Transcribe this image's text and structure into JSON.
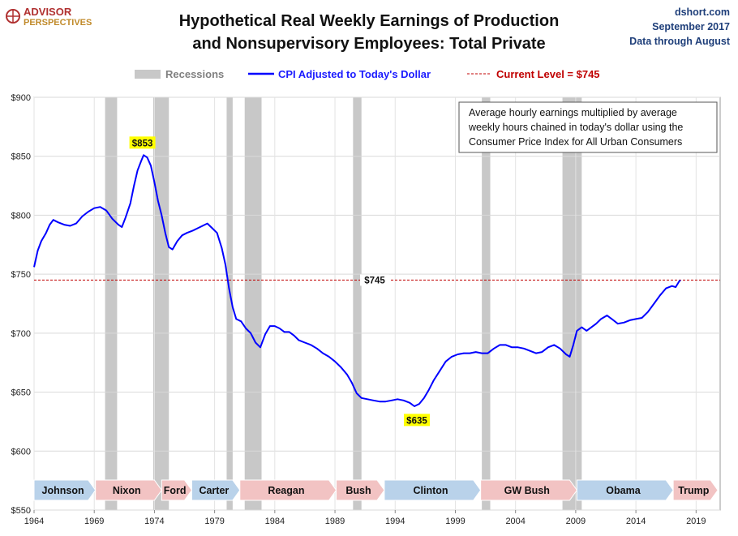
{
  "chart_data": {
    "type": "line",
    "title_line1": "Hypothetical Real Weekly Earnings of Production",
    "title_line2": "and Nonsupervisory Employees: Total Private",
    "source": {
      "site": "dshort.com",
      "date": "September 2017",
      "through": "Data through August"
    },
    "logo": {
      "line1": "ADVISOR",
      "line2": "PERSPECTIVES"
    },
    "legend": {
      "recessions": "Recessions",
      "series": "CPI Adjusted to Today's Dollar",
      "current": "Current Level = $745"
    },
    "colors": {
      "series": "#0000ff",
      "current_line": "#c00000",
      "recession": "#c8c8c8",
      "pres_red": "#f2c3c3",
      "pres_blue": "#b9d2ea",
      "annot_bg": "#ffff00"
    },
    "note": [
      "Average hourly earnings multiplied by average",
      "weekly hours chained in today's dollar using the",
      "Consumer Price Index for All Urban Consumers"
    ],
    "ylim": [
      550,
      900
    ],
    "yticks": [
      550,
      600,
      650,
      700,
      750,
      800,
      850,
      900
    ],
    "ytick_labels": [
      "$550",
      "$600",
      "$650",
      "$700",
      "$750",
      "$800",
      "$850",
      "$900"
    ],
    "xlim": [
      1964,
      2021
    ],
    "xticks": [
      1964,
      1969,
      1974,
      1979,
      1984,
      1989,
      1994,
      1999,
      2004,
      2009,
      2014,
      2019
    ],
    "current_level": 745,
    "current_label": "$745",
    "annotations": [
      {
        "label": "$853",
        "x": 1973.0,
        "y": 853
      },
      {
        "label": "$635",
        "x": 1995.8,
        "y": 635
      }
    ],
    "recessions": [
      [
        1969.9,
        1970.9
      ],
      [
        1973.9,
        1975.2
      ],
      [
        1980.0,
        1980.5
      ],
      [
        1981.5,
        1982.9
      ],
      [
        1990.5,
        1991.2
      ],
      [
        2001.2,
        2001.9
      ],
      [
        2007.9,
        2009.5
      ]
    ],
    "presidents": [
      {
        "name": "Johnson",
        "start": 1964.0,
        "end": 1969.1,
        "party": "D"
      },
      {
        "name": "Nixon",
        "start": 1969.1,
        "end": 1974.6,
        "party": "R"
      },
      {
        "name": "Ford",
        "start": 1974.6,
        "end": 1977.1,
        "party": "R"
      },
      {
        "name": "Carter",
        "start": 1977.1,
        "end": 1981.1,
        "party": "D"
      },
      {
        "name": "Reagan",
        "start": 1981.1,
        "end": 1989.1,
        "party": "R"
      },
      {
        "name": "Bush",
        "start": 1989.1,
        "end": 1993.1,
        "party": "R"
      },
      {
        "name": "Clinton",
        "start": 1993.1,
        "end": 2001.1,
        "party": "D"
      },
      {
        "name": "GW Bush",
        "start": 2001.1,
        "end": 2009.1,
        "party": "R"
      },
      {
        "name": "Obama",
        "start": 2009.1,
        "end": 2017.1,
        "party": "D"
      },
      {
        "name": "Trump",
        "start": 2017.1,
        "end": 2020.8,
        "party": "R"
      }
    ],
    "series": [
      {
        "points": [
          [
            1964.0,
            756
          ],
          [
            1964.3,
            770
          ],
          [
            1964.6,
            778
          ],
          [
            1965.0,
            785
          ],
          [
            1965.3,
            792
          ],
          [
            1965.6,
            796
          ],
          [
            1966.0,
            794
          ],
          [
            1966.5,
            792
          ],
          [
            1967.0,
            791
          ],
          [
            1967.5,
            793
          ],
          [
            1968.0,
            799
          ],
          [
            1968.5,
            803
          ],
          [
            1969.0,
            806
          ],
          [
            1969.5,
            807
          ],
          [
            1970.0,
            804
          ],
          [
            1970.5,
            797
          ],
          [
            1971.0,
            792
          ],
          [
            1971.3,
            790
          ],
          [
            1971.6,
            798
          ],
          [
            1972.0,
            810
          ],
          [
            1972.3,
            825
          ],
          [
            1972.6,
            838
          ],
          [
            1972.9,
            846
          ],
          [
            1973.1,
            851
          ],
          [
            1973.4,
            849
          ],
          [
            1973.7,
            842
          ],
          [
            1974.0,
            828
          ],
          [
            1974.3,
            812
          ],
          [
            1974.6,
            800
          ],
          [
            1974.9,
            785
          ],
          [
            1975.2,
            773
          ],
          [
            1975.5,
            771
          ],
          [
            1975.9,
            778
          ],
          [
            1976.3,
            783
          ],
          [
            1976.7,
            785
          ],
          [
            1977.2,
            787
          ],
          [
            1977.6,
            789
          ],
          [
            1978.0,
            791
          ],
          [
            1978.4,
            793
          ],
          [
            1978.8,
            789
          ],
          [
            1979.2,
            785
          ],
          [
            1979.6,
            772
          ],
          [
            1979.9,
            758
          ],
          [
            1980.2,
            738
          ],
          [
            1980.5,
            722
          ],
          [
            1980.8,
            712
          ],
          [
            1981.2,
            710
          ],
          [
            1981.6,
            704
          ],
          [
            1982.0,
            700
          ],
          [
            1982.4,
            692
          ],
          [
            1982.8,
            688
          ],
          [
            1983.2,
            699
          ],
          [
            1983.6,
            706
          ],
          [
            1984.0,
            706
          ],
          [
            1984.4,
            704
          ],
          [
            1984.8,
            701
          ],
          [
            1985.2,
            701
          ],
          [
            1985.6,
            698
          ],
          [
            1986.0,
            694
          ],
          [
            1986.5,
            692
          ],
          [
            1987.0,
            690
          ],
          [
            1987.5,
            687
          ],
          [
            1988.0,
            683
          ],
          [
            1988.5,
            680
          ],
          [
            1989.0,
            676
          ],
          [
            1989.5,
            671
          ],
          [
            1990.0,
            665
          ],
          [
            1990.4,
            658
          ],
          [
            1990.8,
            649
          ],
          [
            1991.2,
            645
          ],
          [
            1991.7,
            644
          ],
          [
            1992.2,
            643
          ],
          [
            1992.7,
            642
          ],
          [
            1993.2,
            642
          ],
          [
            1993.7,
            643
          ],
          [
            1994.2,
            644
          ],
          [
            1994.7,
            643
          ],
          [
            1995.2,
            641
          ],
          [
            1995.6,
            638
          ],
          [
            1996.0,
            640
          ],
          [
            1996.4,
            645
          ],
          [
            1996.8,
            652
          ],
          [
            1997.2,
            660
          ],
          [
            1997.7,
            668
          ],
          [
            1998.2,
            676
          ],
          [
            1998.7,
            680
          ],
          [
            1999.2,
            682
          ],
          [
            1999.7,
            683
          ],
          [
            2000.2,
            683
          ],
          [
            2000.7,
            684
          ],
          [
            2001.2,
            683
          ],
          [
            2001.7,
            683
          ],
          [
            2002.2,
            687
          ],
          [
            2002.7,
            690
          ],
          [
            2003.2,
            690
          ],
          [
            2003.7,
            688
          ],
          [
            2004.2,
            688
          ],
          [
            2004.7,
            687
          ],
          [
            2005.2,
            685
          ],
          [
            2005.7,
            683
          ],
          [
            2006.2,
            684
          ],
          [
            2006.7,
            688
          ],
          [
            2007.2,
            690
          ],
          [
            2007.7,
            687
          ],
          [
            2008.2,
            682
          ],
          [
            2008.5,
            680
          ],
          [
            2008.8,
            690
          ],
          [
            2009.1,
            702
          ],
          [
            2009.5,
            705
          ],
          [
            2009.9,
            702
          ],
          [
            2010.3,
            705
          ],
          [
            2010.7,
            708
          ],
          [
            2011.1,
            712
          ],
          [
            2011.6,
            715
          ],
          [
            2012.0,
            712
          ],
          [
            2012.5,
            708
          ],
          [
            2013.0,
            709
          ],
          [
            2013.5,
            711
          ],
          [
            2014.0,
            712
          ],
          [
            2014.5,
            713
          ],
          [
            2015.0,
            718
          ],
          [
            2015.5,
            725
          ],
          [
            2016.0,
            732
          ],
          [
            2016.5,
            738
          ],
          [
            2017.0,
            740
          ],
          [
            2017.3,
            739
          ],
          [
            2017.6,
            744
          ],
          [
            2017.7,
            745
          ]
        ]
      }
    ]
  }
}
